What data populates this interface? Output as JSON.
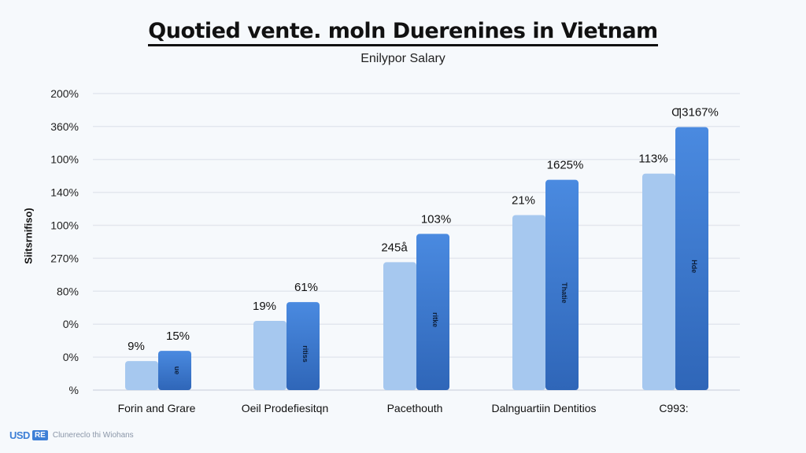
{
  "chart_data": {
    "type": "bar",
    "title": "Quotied vente. moln Duerenines in Vietnam",
    "subtitle": "Enilypor Salary",
    "ylabel": "Siitsrnifiso)",
    "xlabel": "",
    "y_tick_labels": [
      "%",
      "0%",
      "0%",
      "80%",
      "270%",
      "100%",
      "140%",
      "100%",
      "360%",
      "200%"
    ],
    "ylim": [
      0,
      9
    ],
    "grid": true,
    "categories": [
      "Forin and Grare",
      "Oeil Prodefiesitqn",
      "Pacethouth",
      "Dalnguartiin Dentitios",
      "C993:"
    ],
    "series": [
      {
        "color": "#a6c8ef",
        "values": [
          0.88,
          2.1,
          3.88,
          5.31,
          6.57
        ],
        "data_labels": [
          "9%",
          "19%",
          "245å",
          "21%",
          "113%"
        ]
      },
      {
        "color": "#3f7fd6",
        "values": [
          1.19,
          2.67,
          4.74,
          6.38,
          7.98
        ],
        "data_labels": [
          "15%",
          "61%",
          "103%",
          "1625%",
          "Ƣ3167%"
        ],
        "inner_labels": [
          "ue",
          "ritiss",
          "ritke",
          "Thatie",
          "Hde"
        ]
      }
    ]
  },
  "footer": {
    "logo_text": "USD",
    "logo_box": "RE",
    "text": "Clunereclo thi Wiohans"
  }
}
